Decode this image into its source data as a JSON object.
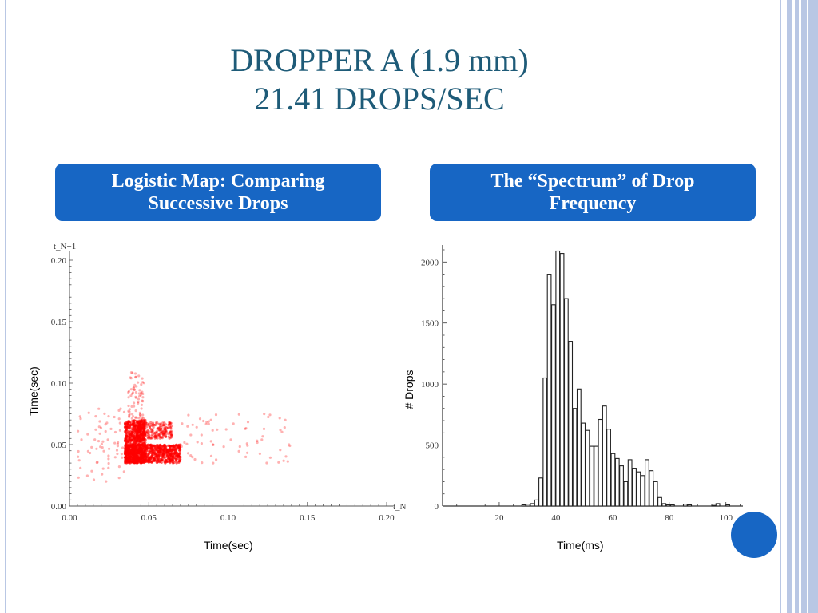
{
  "slide": {
    "title_line1": "DROPPER A (1.9 mm)",
    "title_line2": "21.41 DROPS/SEC",
    "left_header_line1": "Logistic Map: Comparing",
    "left_header_line2": "Successive Drops",
    "right_header_line1": "The “Spectrum” of Drop",
    "right_header_line2": "Frequency",
    "accent_color": "#1766c4",
    "title_color": "#1e5b78"
  },
  "chart_data": [
    {
      "type": "scatter",
      "xlabel": "Time(sec)",
      "ylabel": "Time(sec)",
      "x_axis_name": "t_N",
      "y_axis_name": "t_N+1",
      "xlim": [
        0,
        0.2
      ],
      "ylim": [
        0,
        0.2
      ],
      "x_ticks": [
        "0.00",
        "0.05",
        "0.10",
        "0.15",
        "0.20"
      ],
      "y_ticks": [
        "0.00",
        "0.05",
        "0.10",
        "0.15",
        "0.20"
      ],
      "point_color": "#ff0000",
      "clusters": [
        {
          "x": [
            0.035,
            0.048
          ],
          "y": [
            0.035,
            0.07
          ],
          "density": "dense"
        },
        {
          "x": [
            0.035,
            0.07
          ],
          "y": [
            0.035,
            0.05
          ],
          "density": "dense"
        },
        {
          "x": [
            0.04,
            0.065
          ],
          "y": [
            0.055,
            0.068
          ],
          "density": "medium"
        },
        {
          "x": [
            0.037,
            0.047
          ],
          "y": [
            0.07,
            0.11
          ],
          "density": "sparse"
        },
        {
          "x": [
            0.07,
            0.14
          ],
          "y": [
            0.035,
            0.075
          ],
          "density": "sparse"
        },
        {
          "x": [
            0.005,
            0.035
          ],
          "y": [
            0.02,
            0.08
          ],
          "density": "sparse"
        }
      ]
    },
    {
      "type": "bar",
      "xlabel": "Time(ms)",
      "ylabel": "# Drops",
      "xlim": [
        0,
        106
      ],
      "ylim": [
        0,
        2100
      ],
      "x_ticks": [
        "20",
        "40",
        "60",
        "80",
        "100"
      ],
      "y_ticks": [
        "0",
        "500",
        "1000",
        "1500",
        "2000"
      ],
      "bin_width": 1.5,
      "bin_starts": [
        28,
        29.5,
        31,
        32.5,
        34,
        35.5,
        37,
        38.5,
        40,
        41.5,
        43,
        44.5,
        46,
        47.5,
        49,
        50.5,
        52,
        53.5,
        55,
        56.5,
        58,
        59.5,
        61,
        62.5,
        64,
        65.5,
        67,
        68.5,
        70,
        71.5,
        73,
        74.5,
        76,
        77.5,
        79,
        80.5,
        85,
        86.5,
        95,
        96.5,
        100
      ],
      "values": [
        10,
        15,
        20,
        50,
        230,
        1050,
        1900,
        1650,
        2090,
        2070,
        1700,
        1350,
        800,
        960,
        680,
        620,
        490,
        490,
        710,
        820,
        630,
        430,
        390,
        330,
        200,
        380,
        310,
        280,
        250,
        380,
        290,
        200,
        70,
        20,
        10,
        10,
        15,
        10,
        5,
        20,
        10
      ]
    }
  ]
}
